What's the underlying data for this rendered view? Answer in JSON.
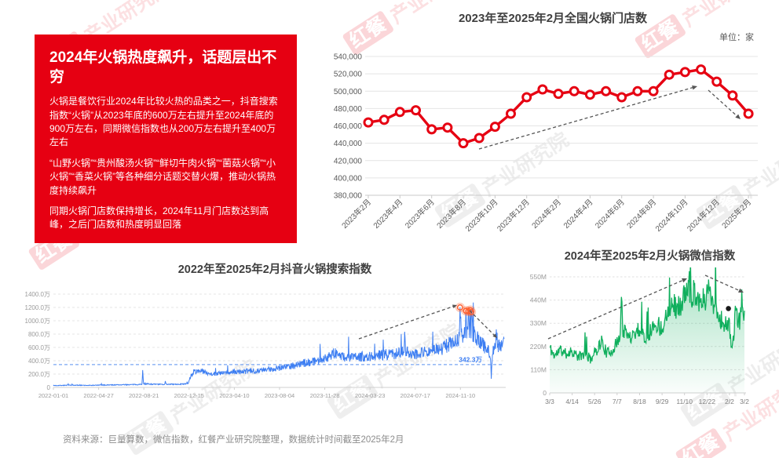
{
  "colors": {
    "brand_red": "#e60012",
    "store_line": "#e60012",
    "douyin_line": "#3d7ef2",
    "douyin_reference": "#79a5f3",
    "wechat_line": "#10af5d",
    "arrow_gray": "#555555",
    "title_gray": "#3f3f3f",
    "axis_gray": "#9b9b9b"
  },
  "watermark": {
    "logo_text": "红餐",
    "brand_text": "产业研究院"
  },
  "info_card": {
    "title": "2024年火锅热度飙升，话题层出不穷",
    "paragraphs": [
      "火锅是餐饮行业2024年比较火热的品类之一，抖音搜索指数“火锅”从2023年底的600万左右提升至2024年底的900万左右，同期微信指数也从200万左右提升至400万左右",
      "“山野火锅”“贵州酸汤火锅”“鲜切牛肉火锅”“菌菇火锅”“小火锅”“香菜火锅”等各种细分话题交替火爆，推动火锅热度持续飙升",
      "同期火锅门店数保持增长，2024年11月门店数达到高峰，之后门店数和热度明显回落"
    ]
  },
  "source_line": "资料来源：巨量算数，微信指数，红餐产业研究院整理，数据统计时间截至2025年2月",
  "chart_data": [
    {
      "id": "store",
      "type": "line",
      "title": "2023年至2025年2月全国火锅门店数",
      "unit_label": "单位：家",
      "grid": true,
      "legend_position": "none",
      "ylim": [
        380000,
        540000
      ],
      "y_tick_labels": [
        "540,000",
        "520,000",
        "500,000",
        "480,000",
        "460,000",
        "440,000",
        "420,000",
        "400,000",
        "380,000"
      ],
      "categories": [
        "2023年2月",
        "2023年3月",
        "2023年4月",
        "2023年5月",
        "2023年6月",
        "2023年7月",
        "2023年8月",
        "2023年9月",
        "2023年10月",
        "2023年11月",
        "2023年12月",
        "2024年1月",
        "2024年2月",
        "2024年3月",
        "2024年4月",
        "2024年5月",
        "2024年6月",
        "2024年7月",
        "2024年8月",
        "2024年9月",
        "2024年10月",
        "2024年11月",
        "2024年12月",
        "2025年1月",
        "2025年2月"
      ],
      "x_tick_labels": [
        "2023年2月",
        "2023年4月",
        "2023年6月",
        "2023年8月",
        "2023年10月",
        "2023年12月",
        "2024年2月",
        "2024年4月",
        "2024年6月",
        "2024年8月",
        "2024年10月",
        "2024年12月",
        "2025年2月"
      ],
      "values": [
        464000,
        467000,
        476000,
        478000,
        456000,
        458000,
        440000,
        446000,
        459000,
        474000,
        493000,
        502000,
        497000,
        500000,
        496000,
        500000,
        493000,
        500000,
        500000,
        519000,
        522000,
        525000,
        511000,
        495000,
        474000
      ],
      "annotations": [
        "rising dashed trend arrow toward 2024-11 peak",
        "falling dashed arrow after peak"
      ]
    },
    {
      "id": "douyin",
      "type": "line",
      "title": "2022年至2025年2月抖音火锅搜索指数",
      "grid": true,
      "ylim_wan": [
        0,
        1400
      ],
      "y_tick_labels": [
        "1400.0万",
        "1200.0万",
        "1000.0万",
        "800.0万",
        "600.0万",
        "400.0万",
        "200.0万",
        "0"
      ],
      "x_ticks": [
        {
          "label": "2022-01-01",
          "date": "2022-01-01"
        },
        {
          "label": "2022-04-27",
          "date": "2022-04-27"
        },
        {
          "label": "2022-08-21",
          "date": "2022-08-21"
        },
        {
          "label": "2022-12-15",
          "date": "2022-12-15"
        },
        {
          "label": "2023-04-10",
          "date": "2023-04-10"
        },
        {
          "label": "2023-08-04",
          "date": "2023-08-04"
        },
        {
          "label": "2023-11-28",
          "date": "2023-11-28"
        },
        {
          "label": "2024-03-23",
          "date": "2024-03-23"
        },
        {
          "label": "2024-07-17",
          "date": "2024-07-17"
        },
        {
          "label": "2024-11-10",
          "date": "2024-11-10"
        }
      ],
      "reference_line": {
        "value_wan": 342.3,
        "label": "342.3万"
      },
      "anchors_wan": [
        [
          "2022-01-01",
          28
        ],
        [
          "2022-02-15",
          34
        ],
        [
          "2022-04-01",
          30
        ],
        [
          "2022-05-15",
          36
        ],
        [
          "2022-07-01",
          40
        ],
        [
          "2022-08-10",
          44
        ],
        [
          "2022-08-16",
          50
        ],
        [
          "2022-08-18",
          260,
          1
        ],
        [
          "2022-08-20",
          55
        ],
        [
          "2022-09-15",
          48
        ],
        [
          "2022-10-13",
          45
        ],
        [
          "2022-10-15",
          95,
          1
        ],
        [
          "2022-10-17",
          48
        ],
        [
          "2022-11-15",
          46
        ],
        [
          "2022-12-12",
          55
        ],
        [
          "2022-12-18",
          150
        ],
        [
          "2022-12-26",
          230
        ],
        [
          "2023-01-10",
          255,
          1
        ],
        [
          "2023-02-10",
          205
        ],
        [
          "2023-03-15",
          215
        ],
        [
          "2023-04-10",
          230
        ],
        [
          "2023-05-20",
          245
        ],
        [
          "2023-07-01",
          260
        ],
        [
          "2023-08-04",
          300
        ],
        [
          "2023-09-10",
          330
        ],
        [
          "2023-10-15",
          375
        ],
        [
          "2023-11-28",
          430
        ],
        [
          "2023-12-18",
          520
        ],
        [
          "2024-01-20",
          450
        ],
        [
          "2024-03-01",
          460
        ],
        [
          "2024-04-15",
          480
        ],
        [
          "2024-05-20",
          505
        ],
        [
          "2024-06-18",
          530
        ],
        [
          "2024-06-20",
          835,
          1
        ],
        [
          "2024-06-22",
          535
        ],
        [
          "2024-07-17",
          510
        ],
        [
          "2024-08-20",
          545
        ],
        [
          "2024-09-25",
          585
        ],
        [
          "2024-10-20",
          680
        ],
        [
          "2024-11-06",
          730
        ],
        [
          "2024-11-09",
          1200,
          1
        ],
        [
          "2024-11-12",
          770
        ],
        [
          "2024-11-22",
          820
        ],
        [
          "2024-11-24",
          1150,
          1
        ],
        [
          "2024-11-26",
          830
        ],
        [
          "2024-11-29",
          850
        ],
        [
          "2024-11-30",
          1140,
          1
        ],
        [
          "2024-12-02",
          860
        ],
        [
          "2024-12-04",
          870
        ],
        [
          "2024-12-05",
          1160,
          1
        ],
        [
          "2024-12-06",
          880
        ],
        [
          "2024-12-07",
          850
        ],
        [
          "2024-12-08",
          1130,
          1
        ],
        [
          "2024-12-12",
          800
        ],
        [
          "2024-12-22",
          740
        ],
        [
          "2025-01-10",
          620
        ],
        [
          "2025-01-26",
          500
        ],
        [
          "2025-01-28",
          130,
          1
        ],
        [
          "2025-01-31",
          540
        ],
        [
          "2025-02-08",
          610
        ],
        [
          "2025-02-10",
          870,
          1
        ],
        [
          "2025-02-14",
          640
        ],
        [
          "2025-02-22",
          600
        ],
        [
          "2025-03-02",
          730,
          1
        ]
      ],
      "highlight_dates": [
        "2024-11-09",
        "2024-11-24",
        "2024-11-30",
        "2024-12-05",
        "2024-12-08"
      ],
      "annotations": [
        "rising dashed trend arrow to Nov-2024 peaks",
        "falling dashed arrow after peaks",
        "orange rings on peak values"
      ]
    },
    {
      "id": "wechat",
      "type": "area",
      "title": "2024年至2025年2月火锅微信指数",
      "grid": true,
      "ylim_m": [
        0,
        550
      ],
      "y_tick_labels": [
        "550M",
        "440M",
        "330M",
        "220M",
        "110M",
        "0"
      ],
      "x_ticks": [
        {
          "label": "3/3",
          "date": "2024-03-03"
        },
        {
          "label": "4/14",
          "date": "2024-04-14"
        },
        {
          "label": "5/26",
          "date": "2024-05-26"
        },
        {
          "label": "7/7",
          "date": "2024-07-07"
        },
        {
          "label": "8/18",
          "date": "2024-08-18"
        },
        {
          "label": "9/29",
          "date": "2024-09-29"
        },
        {
          "label": "11/10",
          "date": "2024-11-10"
        },
        {
          "label": "12/22",
          "date": "2024-12-22"
        },
        {
          "label": "2/2",
          "date": "2025-02-02"
        },
        {
          "label": "3/2",
          "date": "2025-03-02"
        }
      ],
      "anchors_m": [
        [
          "2024-03-03",
          215
        ],
        [
          "2024-03-12",
          175
        ],
        [
          "2024-03-22",
          205
        ],
        [
          "2024-04-02",
          185
        ],
        [
          "2024-04-14",
          200
        ],
        [
          "2024-04-25",
          170
        ],
        [
          "2024-05-08",
          185
        ],
        [
          "2024-05-18",
          160
        ],
        [
          "2024-05-26",
          190
        ],
        [
          "2024-06-08",
          245
        ],
        [
          "2024-06-18",
          185
        ],
        [
          "2024-06-28",
          205
        ],
        [
          "2024-07-07",
          235
        ],
        [
          "2024-07-13",
          290
        ],
        [
          "2024-07-15",
          455,
          1
        ],
        [
          "2024-07-18",
          300
        ],
        [
          "2024-07-28",
          265
        ],
        [
          "2024-08-08",
          285
        ],
        [
          "2024-08-18",
          305
        ],
        [
          "2024-08-28",
          265
        ],
        [
          "2024-09-08",
          295
        ],
        [
          "2024-09-18",
          330
        ],
        [
          "2024-09-29",
          305
        ],
        [
          "2024-10-08",
          385
        ],
        [
          "2024-10-18",
          430
        ],
        [
          "2024-10-28",
          400
        ],
        [
          "2024-11-05",
          425
        ],
        [
          "2024-11-10",
          460
        ],
        [
          "2024-11-16",
          475
        ],
        [
          "2024-11-18",
          530,
          1
        ],
        [
          "2024-11-22",
          460
        ],
        [
          "2024-11-28",
          490
        ],
        [
          "2024-12-05",
          450
        ],
        [
          "2024-12-14",
          435
        ],
        [
          "2024-12-20",
          455
        ],
        [
          "2024-12-22",
          515,
          1
        ],
        [
          "2024-12-27",
          480
        ],
        [
          "2025-01-05",
          420
        ],
        [
          "2025-01-14",
          360
        ],
        [
          "2025-01-22",
          330
        ],
        [
          "2025-02-02",
          315
        ],
        [
          "2025-02-05",
          245
        ],
        [
          "2025-02-07",
          215,
          1
        ],
        [
          "2025-02-10",
          280
        ],
        [
          "2025-02-14",
          390,
          1
        ],
        [
          "2025-02-18",
          330
        ],
        [
          "2025-02-23",
          360
        ],
        [
          "2025-02-25",
          490,
          1
        ],
        [
          "2025-02-27",
          380
        ],
        [
          "2025-03-02",
          390,
          1
        ]
      ],
      "dot_annotation": {
        "date": "2025-01-31",
        "value_m": 400
      },
      "annotations": [
        "rising dashed trend arrow to peak",
        "falling dashed arrow after peak",
        "black dot marker near 2/2"
      ]
    }
  ]
}
